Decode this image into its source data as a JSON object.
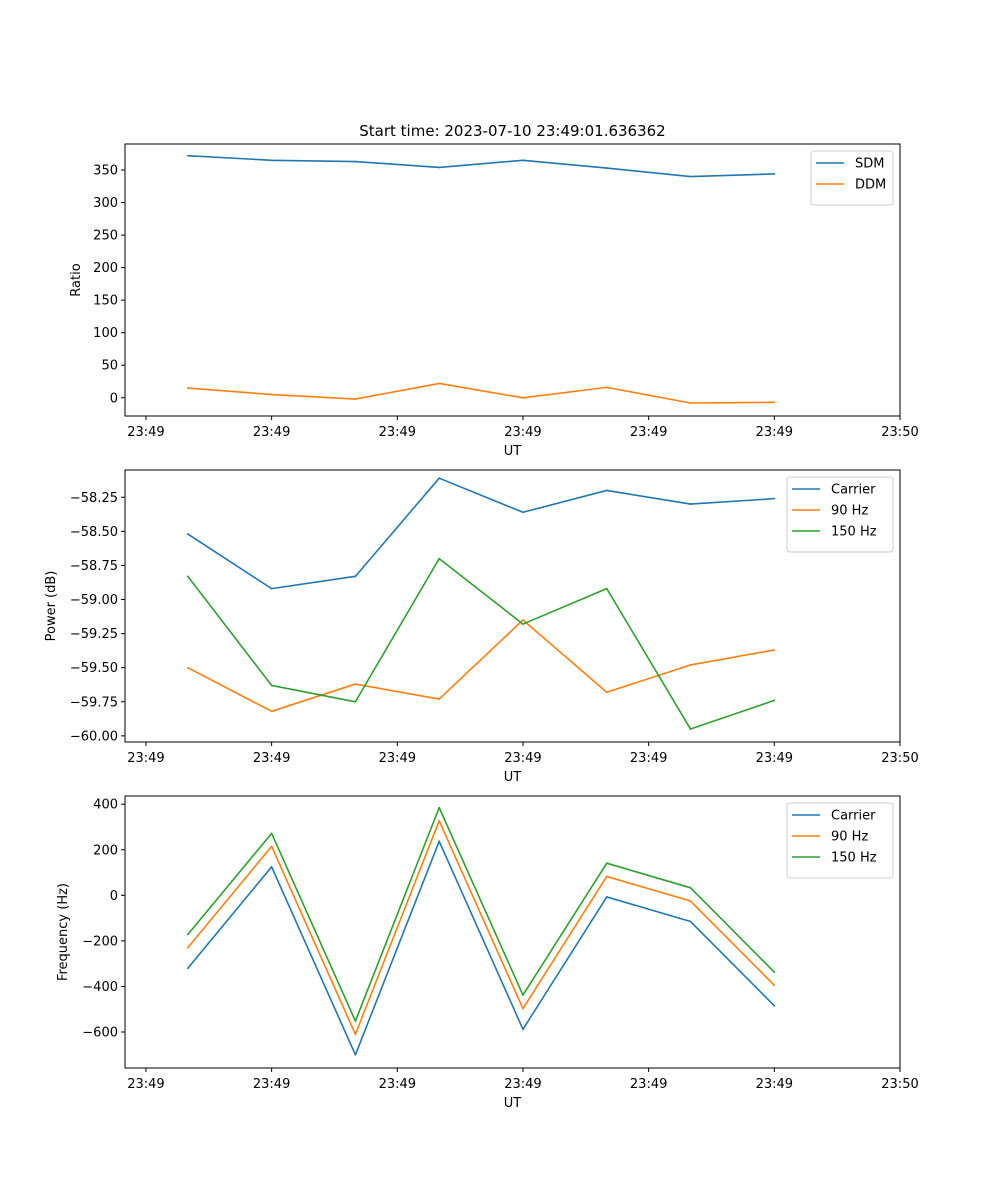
{
  "figure_title": "Start time: 2023-07-10 23:49:01.636362",
  "colors": {
    "c0": "#1f77b4",
    "c1": "#ff7f0e",
    "c2": "#2ca02c"
  },
  "chart_data": [
    {
      "type": "line",
      "title": "Start time: 2023-07-10 23:49:01.636362",
      "xlabel": "UT",
      "ylabel": "Ratio",
      "x": [
        0,
        1,
        2,
        3,
        4,
        5,
        6,
        7
      ],
      "xlim": [
        -0.75,
        8.5
      ],
      "x_ticks": [
        -0.5,
        1.0,
        2.5,
        4.0,
        5.5,
        7.0,
        8.5
      ],
      "x_tick_labels": [
        "23:49",
        "23:49",
        "23:49",
        "23:49",
        "23:49",
        "23:49",
        "23:50"
      ],
      "ylim": [
        -28,
        390
      ],
      "y_ticks": [
        0,
        50,
        100,
        150,
        200,
        250,
        300,
        350
      ],
      "y_tick_labels": [
        "0",
        "50",
        "100",
        "150",
        "200",
        "250",
        "300",
        "350"
      ],
      "legend_position": "top-right",
      "series": [
        {
          "name": "SDM",
          "color": "#1f77b4",
          "values": [
            372,
            365,
            363,
            354,
            365,
            353,
            340,
            344
          ]
        },
        {
          "name": "DDM",
          "color": "#ff7f0e",
          "values": [
            15,
            5,
            -2,
            22,
            0,
            16,
            -8,
            -7
          ]
        }
      ]
    },
    {
      "type": "line",
      "title": "",
      "xlabel": "UT",
      "ylabel": "Power (dB)",
      "x": [
        0,
        1,
        2,
        3,
        4,
        5,
        6,
        7
      ],
      "xlim": [
        -0.75,
        8.5
      ],
      "x_ticks": [
        -0.5,
        1.0,
        2.5,
        4.0,
        5.5,
        7.0,
        8.5
      ],
      "x_tick_labels": [
        "23:49",
        "23:49",
        "23:49",
        "23:49",
        "23:49",
        "23:49",
        "23:50"
      ],
      "ylim": [
        -60.045,
        -58.05
      ],
      "y_ticks": [
        -60.0,
        -59.75,
        -59.5,
        -59.25,
        -59.0,
        -58.75,
        -58.5,
        -58.25
      ],
      "y_tick_labels": [
        "−60.00",
        "−59.75",
        "−59.50",
        "−59.25",
        "−59.00",
        "−58.75",
        "−58.50",
        "−58.25"
      ],
      "legend_position": "top-right",
      "series": [
        {
          "name": "Carrier",
          "color": "#1f77b4",
          "values": [
            -58.52,
            -58.92,
            -58.83,
            -58.11,
            -58.36,
            -58.2,
            -58.3,
            -58.26
          ]
        },
        {
          "name": "90 Hz",
          "color": "#ff7f0e",
          "values": [
            -59.5,
            -59.82,
            -59.62,
            -59.73,
            -59.15,
            -59.68,
            -59.48,
            -59.37
          ]
        },
        {
          "name": "150 Hz",
          "color": "#2ca02c",
          "values": [
            -58.83,
            -59.63,
            -59.75,
            -58.7,
            -59.18,
            -58.92,
            -59.95,
            -59.74
          ]
        }
      ]
    },
    {
      "type": "line",
      "title": "",
      "xlabel": "UT",
      "ylabel": "Frequency (Hz)",
      "x": [
        0,
        1,
        2,
        3,
        4,
        5,
        6,
        7
      ],
      "xlim": [
        -0.75,
        8.5
      ],
      "x_ticks": [
        -0.5,
        1.0,
        2.5,
        4.0,
        5.5,
        7.0,
        8.5
      ],
      "x_tick_labels": [
        "23:49",
        "23:49",
        "23:49",
        "23:49",
        "23:49",
        "23:49",
        "23:50"
      ],
      "ylim": [
        -758,
        436
      ],
      "y_ticks": [
        -600,
        -400,
        -200,
        0,
        200,
        400
      ],
      "y_tick_labels": [
        "−600",
        "−400",
        "−200",
        "0",
        "200",
        "400"
      ],
      "legend_position": "top-right",
      "series": [
        {
          "name": "Carrier",
          "color": "#1f77b4",
          "values": [
            -320,
            125,
            -700,
            237,
            -588,
            -7,
            -115,
            -485
          ]
        },
        {
          "name": "90 Hz",
          "color": "#ff7f0e",
          "values": [
            -230,
            215,
            -610,
            327,
            -497,
            83,
            -25,
            -395
          ]
        },
        {
          "name": "150 Hz",
          "color": "#2ca02c",
          "values": [
            -172,
            272,
            -552,
            385,
            -438,
            141,
            33,
            -337
          ]
        }
      ]
    }
  ]
}
